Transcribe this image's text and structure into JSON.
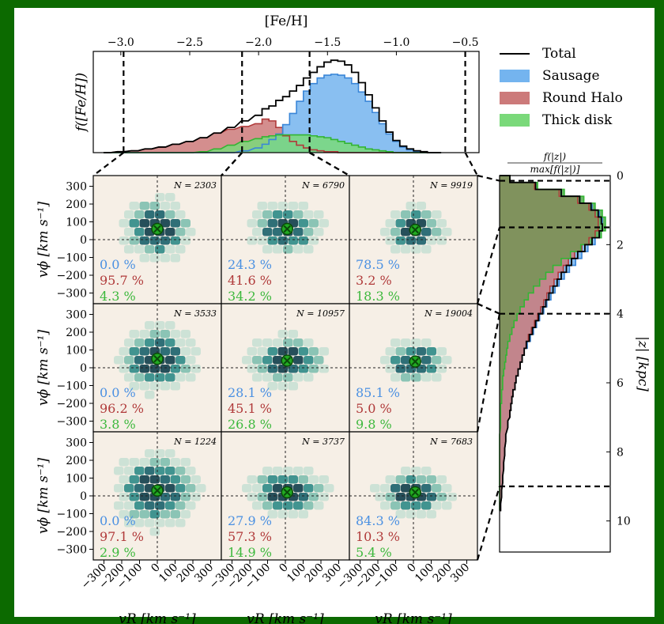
{
  "chart_data": {
    "type": "figure",
    "top": {
      "xlabel": "[Fe/H]",
      "ylabel": "f([Fe/H])",
      "xlim": [
        -3.2,
        -0.4
      ],
      "xticks": [
        "−3.0",
        "−2.5",
        "−2.0",
        "−1.5",
        "−1.0",
        "−0.5"
      ],
      "xtick_values": [
        -3.0,
        -2.5,
        -2.0,
        -1.5,
        -1.0,
        -0.5
      ],
      "cuts": [
        -2.98,
        -2.12,
        -1.63,
        -0.5
      ],
      "x": [
        -3.1,
        -3.0,
        -2.9,
        -2.8,
        -2.7,
        -2.6,
        -2.5,
        -2.4,
        -2.3,
        -2.2,
        -2.1,
        -2.0,
        -1.95,
        -1.9,
        -1.85,
        -1.8,
        -1.75,
        -1.7,
        -1.65,
        -1.6,
        -1.55,
        -1.5,
        -1.45,
        -1.4,
        -1.35,
        -1.3,
        -1.25,
        -1.2,
        -1.15,
        -1.1,
        -1.05,
        -1.0,
        -0.95,
        -0.9,
        -0.85,
        -0.8,
        -0.75,
        -0.7
      ],
      "series": [
        {
          "name": "Total",
          "color": "#000000",
          "values": [
            0.0,
            0.01,
            0.02,
            0.04,
            0.06,
            0.09,
            0.12,
            0.16,
            0.21,
            0.27,
            0.34,
            0.4,
            0.47,
            0.5,
            0.56,
            0.6,
            0.66,
            0.72,
            0.8,
            0.86,
            0.92,
            0.97,
            0.99,
            0.98,
            0.94,
            0.86,
            0.75,
            0.62,
            0.48,
            0.34,
            0.22,
            0.13,
            0.07,
            0.04,
            0.02,
            0.01,
            0.0,
            0.0
          ]
        },
        {
          "name": "Sausage",
          "color": "#74b4ef",
          "values": [
            0.0,
            0.0,
            0.0,
            0.0,
            0.0,
            0.0,
            0.0,
            0.0,
            0.0,
            0.0,
            0.02,
            0.05,
            0.09,
            0.14,
            0.2,
            0.3,
            0.42,
            0.55,
            0.66,
            0.74,
            0.8,
            0.83,
            0.84,
            0.83,
            0.8,
            0.74,
            0.65,
            0.55,
            0.43,
            0.31,
            0.2,
            0.12,
            0.06,
            0.03,
            0.01,
            0.0,
            0.0,
            0.0
          ]
        },
        {
          "name": "Round Halo",
          "color": "#cc7a7a",
          "values": [
            0.0,
            0.01,
            0.02,
            0.04,
            0.06,
            0.09,
            0.12,
            0.16,
            0.21,
            0.25,
            0.28,
            0.31,
            0.36,
            0.34,
            0.27,
            0.18,
            0.12,
            0.08,
            0.05,
            0.03,
            0.02,
            0.01,
            0.01,
            0.0,
            0.0,
            0.0,
            0.0,
            0.0,
            0.0,
            0.0,
            0.0,
            0.0,
            0.0,
            0.0,
            0.0,
            0.0,
            0.0,
            0.0
          ]
        },
        {
          "name": "Thick disk",
          "color": "#7ad97a",
          "values": [
            0.0,
            0.0,
            0.0,
            0.0,
            0.0,
            0.0,
            0.0,
            0.01,
            0.04,
            0.08,
            0.12,
            0.15,
            0.17,
            0.18,
            0.19,
            0.19,
            0.19,
            0.19,
            0.19,
            0.18,
            0.17,
            0.16,
            0.14,
            0.12,
            0.1,
            0.08,
            0.06,
            0.04,
            0.03,
            0.02,
            0.01,
            0.0,
            0.0,
            0.0,
            0.0,
            0.0,
            0.0,
            0.0
          ]
        }
      ]
    },
    "panels": {
      "ylabel": "vϕ [km s⁻¹]",
      "xlabel": "vR [km s⁻¹]",
      "xlim": [
        -360,
        360
      ],
      "ylim": [
        -360,
        360
      ],
      "yticks": [
        "300",
        "200",
        "100",
        "0",
        "−100",
        "−200",
        "−300"
      ],
      "ytick_values": [
        300,
        200,
        100,
        0,
        -100,
        -200,
        -300
      ],
      "xticks": [
        "−300",
        "−200",
        "−100",
        "0",
        "100",
        "200",
        "300"
      ],
      "xtick_values": [
        -300,
        -200,
        -100,
        0,
        100,
        200,
        300
      ],
      "rows": [
        [
          {
            "N": "N = 2303",
            "pct": [
              "0.0 %",
              "95.7 %",
              "4.3 %"
            ],
            "center": [
              0,
              60
            ],
            "width": 110,
            "spread": [
              130,
              110
            ]
          },
          {
            "N": "N = 6790",
            "pct": [
              "24.3 %",
              "41.6 %",
              "34.2 %"
            ],
            "center": [
              10,
              60
            ],
            "width": 150,
            "spread": [
              130,
              95
            ]
          },
          {
            "N": "N = 9919",
            "pct": [
              "78.5 %",
              "3.2 %",
              "18.3 %"
            ],
            "center": [
              10,
              55
            ],
            "width": 200,
            "spread": [
              110,
              85
            ]
          }
        ],
        [
          {
            "N": "N = 3533",
            "pct": [
              "0.0 %",
              "96.2 %",
              "3.8 %"
            ],
            "center": [
              0,
              50
            ],
            "width": 130,
            "spread": [
              140,
              120
            ]
          },
          {
            "N": "N = 10957",
            "pct": [
              "28.1 %",
              "45.1 %",
              "26.8 %"
            ],
            "center": [
              10,
              40
            ],
            "width": 220,
            "spread": [
              140,
              90
            ]
          },
          {
            "N": "N = 19004",
            "pct": [
              "85.1 %",
              "5.0 %",
              "9.8 %"
            ],
            "center": [
              10,
              35
            ],
            "width": 260,
            "spread": [
              120,
              80
            ]
          }
        ],
        [
          {
            "N": "N = 1224",
            "pct": [
              "0.0 %",
              "97.1 %",
              "2.9 %"
            ],
            "center": [
              0,
              30
            ],
            "width": 100,
            "spread": [
              150,
              140
            ]
          },
          {
            "N": "N = 3737",
            "pct": [
              "27.9 %",
              "57.3 %",
              "14.9 %"
            ],
            "center": [
              10,
              20
            ],
            "width": 240,
            "spread": [
              150,
              90
            ]
          },
          {
            "N": "N = 7683",
            "pct": [
              "84.3 %",
              "10.3 %",
              "5.4 %"
            ],
            "center": [
              10,
              20
            ],
            "width": 260,
            "spread": [
              140,
              80
            ]
          }
        ]
      ]
    },
    "side": {
      "title_num": "f(|z|)",
      "title_den": "max[f(|z|)]",
      "ylabel": "|z| [kpc]",
      "ylim": [
        0,
        10.9
      ],
      "yticks": [
        "0",
        "2",
        "4",
        "6",
        "8",
        "10"
      ],
      "ytick_values": [
        0,
        2,
        4,
        6,
        8,
        10
      ],
      "cuts": [
        0.15,
        1.5,
        4.0,
        9.0
      ],
      "z": [
        0.1,
        0.3,
        0.5,
        0.7,
        0.9,
        1.1,
        1.3,
        1.5,
        1.7,
        1.9,
        2.1,
        2.3,
        2.5,
        2.7,
        2.9,
        3.1,
        3.3,
        3.5,
        3.7,
        3.9,
        4.1,
        4.3,
        4.5,
        4.7,
        4.9,
        5.1,
        5.3,
        5.5,
        5.7,
        5.9,
        6.1,
        6.3,
        6.5,
        6.7,
        6.9,
        7.2,
        7.6,
        8.0,
        8.4,
        8.8,
        9.2,
        9.6
      ],
      "series": [
        {
          "name": "Total",
          "color": "#000000",
          "values": [
            0.1,
            0.35,
            0.6,
            0.78,
            0.89,
            0.96,
            0.99,
            1.0,
            0.97,
            0.9,
            0.83,
            0.76,
            0.7,
            0.65,
            0.6,
            0.56,
            0.52,
            0.48,
            0.45,
            0.42,
            0.38,
            0.35,
            0.32,
            0.29,
            0.26,
            0.24,
            0.22,
            0.2,
            0.18,
            0.16,
            0.15,
            0.13,
            0.12,
            0.11,
            0.1,
            0.08,
            0.06,
            0.05,
            0.04,
            0.03,
            0.02,
            0.01
          ]
        },
        {
          "name": "Sausage",
          "color": "#74b4ef",
          "values": [
            0.1,
            0.35,
            0.6,
            0.78,
            0.9,
            0.97,
            1.0,
            1.0,
            0.99,
            0.93,
            0.86,
            0.8,
            0.74,
            0.68,
            0.63,
            0.58,
            0.54,
            0.5,
            0.46,
            0.43,
            0.39,
            0.36,
            0.33,
            0.3,
            0.27,
            0.24,
            0.22,
            0.2,
            0.18,
            0.16,
            0.15,
            0.13,
            0.12,
            0.11,
            0.1,
            0.08,
            0.06,
            0.05,
            0.04,
            0.03,
            0.02,
            0.01
          ]
        },
        {
          "name": "Round Halo",
          "color": "#cc7a7a",
          "values": [
            0.1,
            0.34,
            0.58,
            0.76,
            0.87,
            0.93,
            0.96,
            0.96,
            0.93,
            0.87,
            0.8,
            0.73,
            0.67,
            0.62,
            0.57,
            0.53,
            0.49,
            0.46,
            0.43,
            0.4,
            0.37,
            0.34,
            0.31,
            0.28,
            0.26,
            0.24,
            0.22,
            0.2,
            0.18,
            0.16,
            0.15,
            0.13,
            0.12,
            0.11,
            0.1,
            0.08,
            0.06,
            0.05,
            0.04,
            0.03,
            0.02,
            0.01
          ]
        },
        {
          "name": "Thick disk",
          "color": "#7ad97a",
          "values": [
            0.1,
            0.37,
            0.63,
            0.82,
            0.93,
            1.0,
            1.03,
            1.03,
            0.99,
            0.9,
            0.79,
            0.69,
            0.6,
            0.52,
            0.45,
            0.39,
            0.33,
            0.28,
            0.24,
            0.2,
            0.17,
            0.14,
            0.12,
            0.1,
            0.08,
            0.07,
            0.06,
            0.05,
            0.04,
            0.03,
            0.03,
            0.02,
            0.02,
            0.01,
            0.01,
            0.01,
            0.0,
            0.0,
            0.0,
            0.0,
            0.0,
            0.0
          ]
        }
      ]
    },
    "legend": [
      "Total",
      "Sausage",
      "Round Halo",
      "Thick disk"
    ],
    "legend_placement": "top-right",
    "colors": {
      "sausage": "#4a90e2",
      "round_halo": "#b03a3a",
      "thick_disk": "#3cb83c",
      "marker": "#22aa22"
    }
  }
}
